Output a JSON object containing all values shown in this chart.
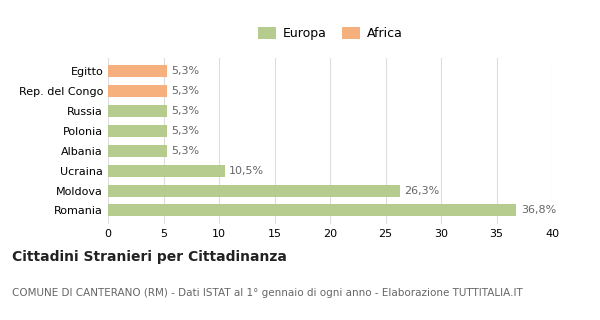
{
  "categories": [
    "Romania",
    "Moldova",
    "Ucraina",
    "Albania",
    "Polonia",
    "Russia",
    "Rep. del Congo",
    "Egitto"
  ],
  "values": [
    36.8,
    26.3,
    10.5,
    5.3,
    5.3,
    5.3,
    5.3,
    5.3
  ],
  "labels": [
    "36,8%",
    "26,3%",
    "10,5%",
    "5,3%",
    "5,3%",
    "5,3%",
    "5,3%",
    "5,3%"
  ],
  "colors": [
    "#b5cc8e",
    "#b5cc8e",
    "#b5cc8e",
    "#b5cc8e",
    "#b5cc8e",
    "#b5cc8e",
    "#f5b07e",
    "#f5b07e"
  ],
  "europa_color": "#b5cc8e",
  "africa_color": "#f5b07e",
  "xlim": [
    0,
    40
  ],
  "xticks": [
    0,
    5,
    10,
    15,
    20,
    25,
    30,
    35,
    40
  ],
  "title": "Cittadini Stranieri per Cittadinanza",
  "subtitle": "COMUNE DI CANTERANO (RM) - Dati ISTAT al 1° gennaio di ogni anno - Elaborazione TUTTITALIA.IT",
  "background_color": "#ffffff",
  "grid_color": "#dddddd",
  "bar_height": 0.6,
  "title_fontsize": 10,
  "subtitle_fontsize": 7.5,
  "legend_fontsize": 9,
  "tick_fontsize": 8,
  "label_fontsize": 8
}
